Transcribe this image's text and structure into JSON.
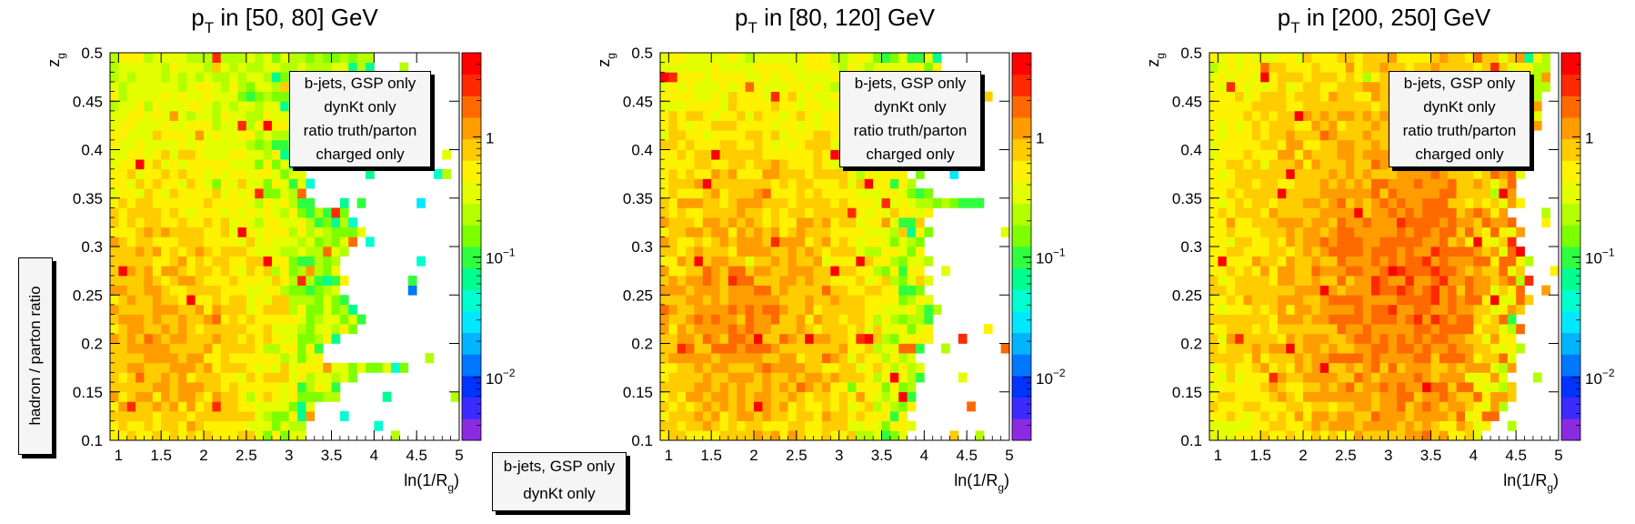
{
  "global": {
    "ylabel": "hadron / parton ratio",
    "legend": [
      "b-jets, GSP only",
      "dynKt only"
    ]
  },
  "colorbar_ticks": [
    {
      "value": 1,
      "label": "1"
    },
    {
      "value": 0.1,
      "label": "10",
      "sup": "−1"
    },
    {
      "value": 0.01,
      "label": "10",
      "sup": "−2"
    }
  ],
  "colors": {
    "palette": [
      "#8a2be2",
      "#3b2bff",
      "#0033ff",
      "#0077ff",
      "#00b4ff",
      "#00e8ff",
      "#00ffd0",
      "#00ff90",
      "#30ff40",
      "#7dff00",
      "#b4ff00",
      "#e4ff00",
      "#fff200",
      "#ffcc00",
      "#ff9d00",
      "#ff6a00",
      "#ff2a00",
      "#ff0000"
    ]
  },
  "chart_data": [
    {
      "type": "heatmap",
      "title_main": "p",
      "title_sub": "T",
      "title_rest": " in [50, 80] GeV",
      "xlabel_main": "ln(1/R",
      "xlabel_sub": "g",
      "xlabel_close": ")",
      "ylabel_main": "z",
      "ylabel_sub": "g",
      "xlim": [
        0.9,
        5
      ],
      "ylim": [
        0.1,
        0.5
      ],
      "xticks": [
        1,
        1.5,
        2,
        2.5,
        3,
        3.5,
        4,
        4.5,
        5
      ],
      "yticks": [
        0.1,
        0.15,
        0.2,
        0.25,
        0.3,
        0.35,
        0.4,
        0.45,
        0.5
      ],
      "z_log": true,
      "zlim": [
        0.003,
        5
      ],
      "legend": [
        "b-jets, GSP only",
        "dynKt only",
        "ratio truth/parton",
        "charged only"
      ],
      "bin_width": 0.1,
      "bin_height": 0.01,
      "x_start": 0.9,
      "row_extent": [
        3.2,
        3.2,
        3.3,
        3.3,
        3.6,
        3.6,
        3.8,
        4.4,
        3.4,
        3.4,
        3.6,
        3.8,
        3.9,
        3.8,
        3.7,
        3.6,
        3.7,
        3.6,
        3.6,
        3.7,
        3.8,
        3.9,
        3.8,
        3.7,
        3.3,
        3.2,
        3.3,
        3.2,
        3.3,
        3.2,
        3.1,
        3.2,
        3.1,
        3.3,
        3.2,
        3.1,
        3.2,
        3.2,
        4.0,
        4.0
      ],
      "peak": [
        1.4,
        0.2
      ],
      "peak_level": 1.1,
      "tail_level": 0.08,
      "seed": 11
    },
    {
      "type": "heatmap",
      "title_main": "p",
      "title_sub": "T",
      "title_rest": " in [80, 120] GeV",
      "xlabel_main": "ln(1/R",
      "xlabel_sub": "g",
      "xlabel_close": ")",
      "ylabel_main": "z",
      "ylabel_sub": "g",
      "xlim": [
        0.9,
        5
      ],
      "ylim": [
        0.1,
        0.5
      ],
      "xticks": [
        1,
        1.5,
        2,
        2.5,
        3,
        3.5,
        4,
        4.5,
        5
      ],
      "yticks": [
        0.1,
        0.15,
        0.2,
        0.25,
        0.3,
        0.35,
        0.4,
        0.45,
        0.5
      ],
      "z_log": true,
      "zlim": [
        0.003,
        5
      ],
      "legend": [
        "b-jets, GSP only",
        "dynKt only",
        "ratio truth/parton",
        "charged only"
      ],
      "bin_width": 0.1,
      "bin_height": 0.01,
      "x_start": 0.9,
      "row_extent": [
        3.8,
        3.9,
        3.8,
        3.9,
        3.9,
        3.9,
        4.0,
        4.0,
        3.9,
        4.0,
        4.1,
        4.1,
        4.0,
        4.2,
        4.1,
        4.0,
        4.1,
        4.0,
        4.1,
        4.0,
        4.0,
        4.1,
        4.0,
        4.1,
        4.7,
        4.1,
        3.9,
        3.8,
        3.7,
        3.8,
        3.7,
        3.8,
        3.7,
        3.8,
        3.7,
        3.6,
        3.7,
        3.6,
        4.2,
        4.2
      ],
      "peak": [
        1.8,
        0.22
      ],
      "peak_level": 1.4,
      "tail_level": 0.15,
      "seed": 23
    },
    {
      "type": "heatmap",
      "title_main": "p",
      "title_sub": "T",
      "title_rest": " in [200, 250] GeV",
      "xlabel_main": "ln(1/R",
      "xlabel_sub": "g",
      "xlabel_close": ")",
      "ylabel_main": "z",
      "ylabel_sub": "g",
      "xlim": [
        0.9,
        5
      ],
      "ylim": [
        0.1,
        0.5
      ],
      "xticks": [
        1,
        1.5,
        2,
        2.5,
        3,
        3.5,
        4,
        4.5,
        5
      ],
      "yticks": [
        0.1,
        0.15,
        0.2,
        0.25,
        0.3,
        0.35,
        0.4,
        0.45,
        0.5
      ],
      "z_log": true,
      "zlim": [
        0.003,
        5
      ],
      "legend": [
        "b-jets, GSP only",
        "dynKt only",
        "ratio truth/parton",
        "charged only"
      ],
      "bin_width": 0.1,
      "bin_height": 0.01,
      "x_start": 0.9,
      "row_extent": [
        4.1,
        4.2,
        4.3,
        4.4,
        4.5,
        4.5,
        4.4,
        4.5,
        4.5,
        4.6,
        4.5,
        4.6,
        4.5,
        4.6,
        4.7,
        4.6,
        4.7,
        4.6,
        4.7,
        4.6,
        4.5,
        4.6,
        4.5,
        4.4,
        4.6,
        4.5,
        4.5,
        4.6,
        4.5,
        4.7,
        4.6,
        4.7,
        4.8,
        4.8,
        4.8,
        4.8,
        4.9,
        4.9,
        4.9,
        4.9
      ],
      "peak": [
        3.2,
        0.26
      ],
      "peak_level": 2.0,
      "tail_level": 0.6,
      "seed": 37
    }
  ]
}
